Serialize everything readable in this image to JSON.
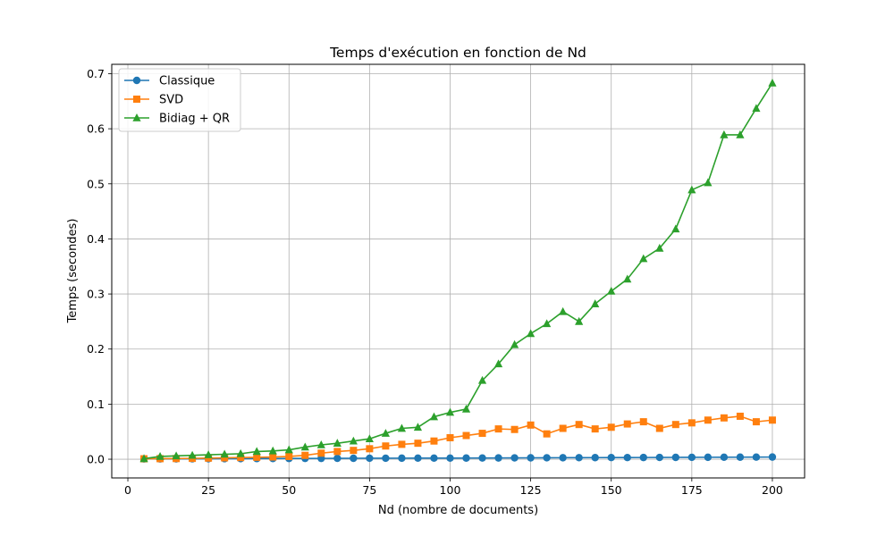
{
  "chart_data": {
    "type": "line",
    "title": "Temps d'exécution en fonction de Nd",
    "xlabel": "Nd (nombre de documents)",
    "ylabel": "Temps (secondes)",
    "xlim": [
      -5,
      210
    ],
    "ylim": [
      -0.034,
      0.717
    ],
    "xticks": [
      "0",
      "25",
      "50",
      "75",
      "100",
      "125",
      "150",
      "175",
      "200"
    ],
    "yticks": [
      "0.0",
      "0.1",
      "0.2",
      "0.3",
      "0.4",
      "0.5",
      "0.6",
      "0.7"
    ],
    "grid": true,
    "legend_position": "top-left",
    "x": [
      5,
      10,
      15,
      20,
      25,
      30,
      35,
      40,
      45,
      50,
      55,
      60,
      65,
      70,
      75,
      80,
      85,
      90,
      95,
      100,
      105,
      110,
      115,
      120,
      125,
      130,
      135,
      140,
      145,
      150,
      155,
      160,
      165,
      170,
      175,
      180,
      185,
      190,
      195,
      200
    ],
    "series": [
      {
        "name": "Classique",
        "color": "#1f77b4",
        "marker": "circle",
        "values": [
          0.0005,
          0.0005,
          0.0006,
          0.0007,
          0.0008,
          0.0009,
          0.001,
          0.0011,
          0.0012,
          0.0013,
          0.0014,
          0.0015,
          0.0016,
          0.0017,
          0.0018,
          0.0018,
          0.0019,
          0.002,
          0.002,
          0.002,
          0.0021,
          0.0022,
          0.0023,
          0.0024,
          0.0025,
          0.0026,
          0.0027,
          0.0028,
          0.0029,
          0.003,
          0.003,
          0.0031,
          0.0032,
          0.0033,
          0.0034,
          0.0035,
          0.0036,
          0.0037,
          0.0038,
          0.0039
        ]
      },
      {
        "name": "SVD",
        "color": "#ff7f0e",
        "marker": "square",
        "values": [
          0.0008,
          0.001,
          0.0012,
          0.0015,
          0.002,
          0.0025,
          0.003,
          0.0035,
          0.004,
          0.005,
          0.007,
          0.011,
          0.014,
          0.016,
          0.019,
          0.024,
          0.027,
          0.029,
          0.033,
          0.039,
          0.043,
          0.047,
          0.055,
          0.054,
          0.062,
          0.046,
          0.056,
          0.063,
          0.055,
          0.058,
          0.064,
          0.068,
          0.056,
          0.063,
          0.066,
          0.071,
          0.075,
          0.078,
          0.068,
          0.071
        ]
      },
      {
        "name": "Bidiag + QR",
        "color": "#2ca02c",
        "marker": "triangle",
        "values": [
          0.001,
          0.005,
          0.006,
          0.007,
          0.008,
          0.009,
          0.01,
          0.014,
          0.015,
          0.017,
          0.022,
          0.026,
          0.029,
          0.033,
          0.037,
          0.047,
          0.056,
          0.058,
          0.077,
          0.085,
          0.091,
          0.143,
          0.173,
          0.208,
          0.228,
          0.246,
          0.268,
          0.25,
          0.282,
          0.305,
          0.327,
          0.364,
          0.383,
          0.418,
          0.489,
          0.502,
          0.589,
          0.589,
          0.637,
          0.683
        ]
      }
    ]
  }
}
